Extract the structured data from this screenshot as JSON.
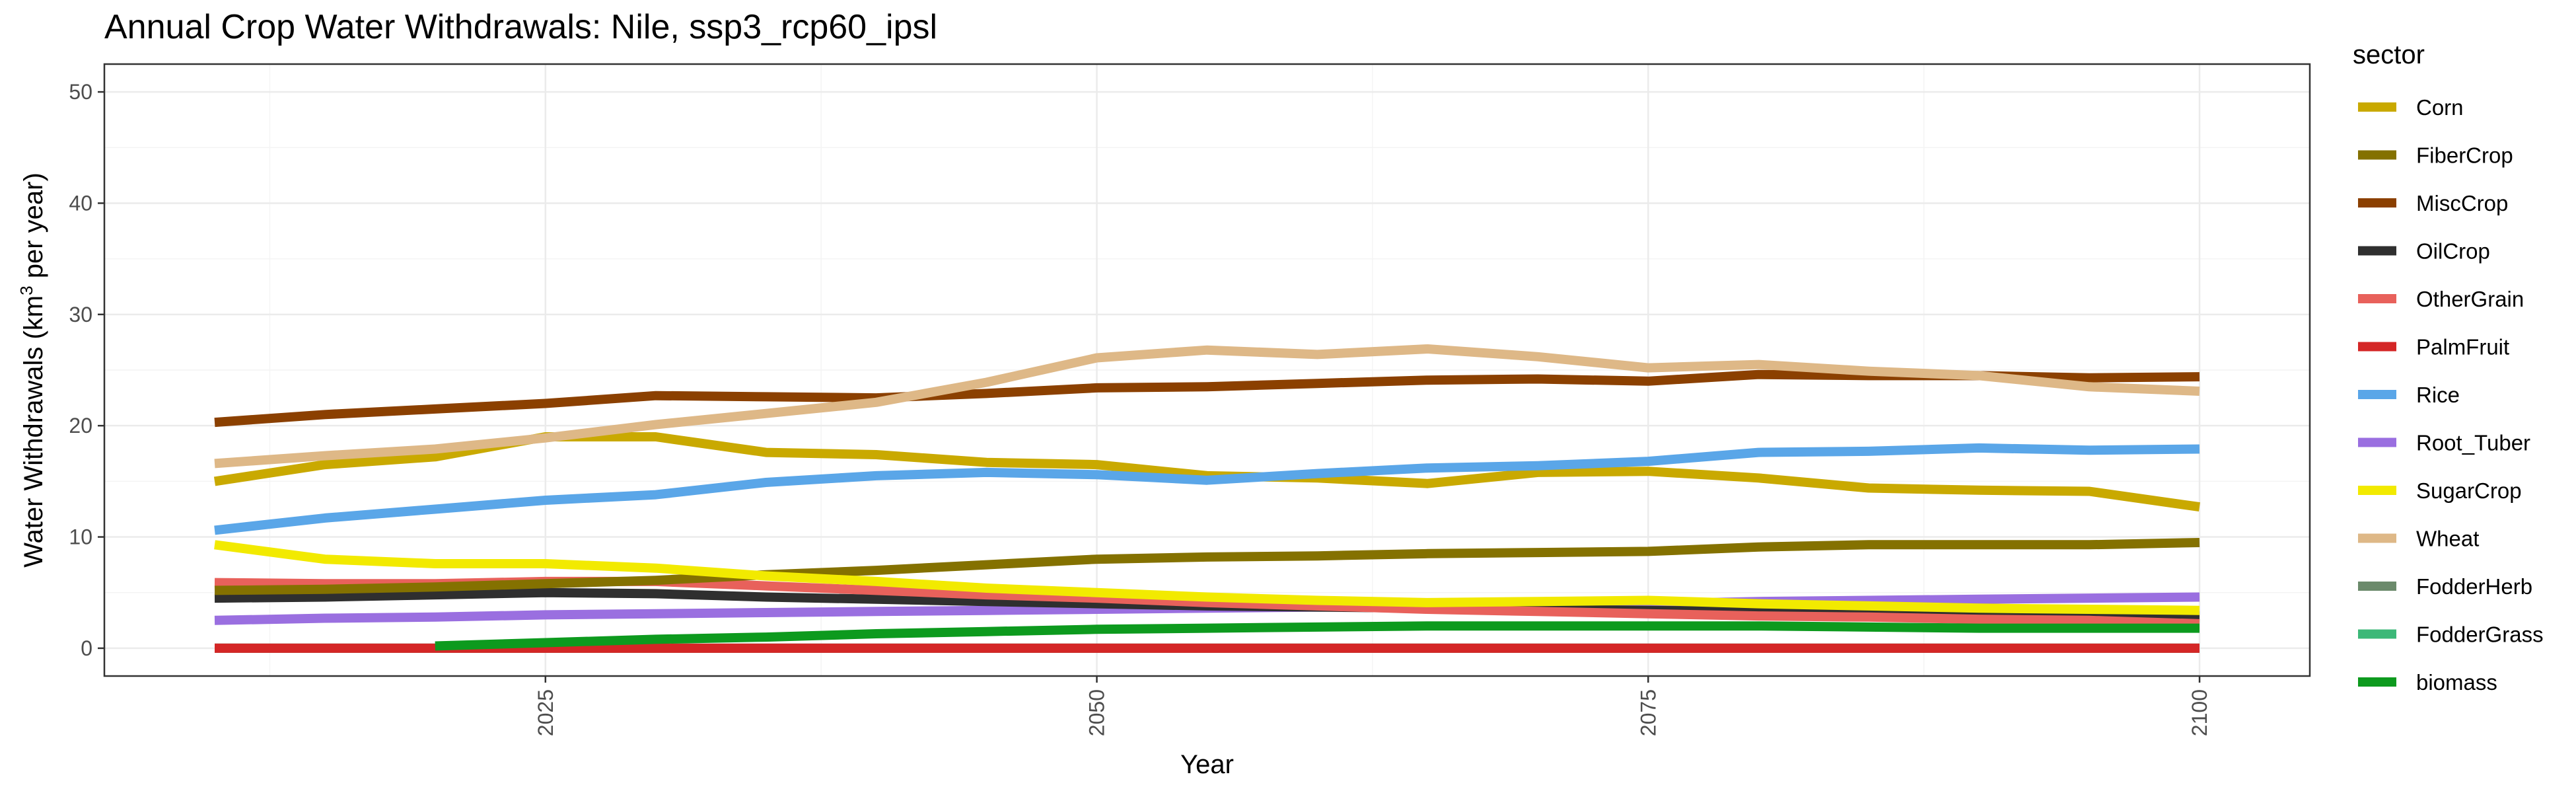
{
  "chart_data": {
    "type": "line",
    "title": "Annual Crop Water Withdrawals: Nile, ssp3_rcp60_ipsl",
    "xlabel": "Year",
    "ylabel_prefix": "Water Withdrawals (km",
    "ylabel_sup": "3",
    "ylabel_suffix": " per year)",
    "xlim": [
      2005,
      2105
    ],
    "ylim": [
      -2.5,
      52.5
    ],
    "x_ticks": [
      2025,
      2050,
      2075,
      2100
    ],
    "y_ticks": [
      0,
      10,
      20,
      30,
      40,
      50
    ],
    "grid": true,
    "legend_position": "right",
    "legend_title": "sector",
    "x": [
      2010,
      2015,
      2020,
      2025,
      2030,
      2035,
      2040,
      2045,
      2050,
      2055,
      2060,
      2065,
      2070,
      2075,
      2080,
      2085,
      2090,
      2095,
      2100
    ],
    "series": [
      {
        "name": "Corn",
        "color": "#c9a900",
        "values": [
          15.0,
          16.5,
          17.2,
          19.0,
          19.0,
          17.6,
          17.4,
          16.7,
          16.5,
          15.5,
          15.3,
          14.8,
          15.8,
          15.9,
          15.3,
          14.4,
          14.2,
          14.1,
          12.7
        ]
      },
      {
        "name": "FiberCrop",
        "color": "#847100",
        "values": [
          5.2,
          5.3,
          5.5,
          5.8,
          6.1,
          6.6,
          7.0,
          7.5,
          8.0,
          8.2,
          8.3,
          8.5,
          8.6,
          8.7,
          9.1,
          9.3,
          9.3,
          9.3,
          9.5
        ]
      },
      {
        "name": "MiscCrop",
        "color": "#8b4000",
        "values": [
          20.3,
          21.0,
          21.5,
          22.0,
          22.7,
          22.6,
          22.5,
          22.9,
          23.4,
          23.5,
          23.8,
          24.1,
          24.2,
          24.0,
          24.6,
          24.5,
          24.5,
          24.3,
          24.4
        ]
      },
      {
        "name": "OilCrop",
        "color": "#2f2f2f",
        "values": [
          4.5,
          4.6,
          4.8,
          5.0,
          4.9,
          4.6,
          4.4,
          4.2,
          4.0,
          3.8,
          3.7,
          3.6,
          3.5,
          3.4,
          3.3,
          3.2,
          3.1,
          3.0,
          2.9
        ]
      },
      {
        "name": "OtherGrain",
        "color": "#e8615b",
        "values": [
          5.9,
          5.8,
          5.8,
          6.0,
          6.0,
          5.6,
          5.2,
          4.8,
          4.5,
          4.1,
          3.8,
          3.5,
          3.3,
          3.1,
          2.9,
          2.8,
          2.6,
          2.5,
          2.2
        ]
      },
      {
        "name": "PalmFruit",
        "color": "#d42626",
        "values": [
          0,
          0,
          0,
          0,
          0,
          0,
          0,
          0,
          0,
          0,
          0,
          0,
          0,
          0,
          0,
          0,
          0,
          0,
          0
        ]
      },
      {
        "name": "Rice",
        "color": "#5aa6e8",
        "values": [
          10.6,
          11.7,
          12.5,
          13.3,
          13.8,
          14.9,
          15.5,
          15.8,
          15.6,
          15.1,
          15.7,
          16.2,
          16.4,
          16.8,
          17.6,
          17.7,
          18.0,
          17.8,
          17.9
        ]
      },
      {
        "name": "Root_Tuber",
        "color": "#9a6fe0",
        "values": [
          2.5,
          2.7,
          2.8,
          3.0,
          3.1,
          3.2,
          3.3,
          3.4,
          3.5,
          3.6,
          3.7,
          3.8,
          3.9,
          4.0,
          4.2,
          4.3,
          4.4,
          4.5,
          4.6
        ]
      },
      {
        "name": "SugarCrop",
        "color": "#f2ea00",
        "values": [
          9.3,
          8.0,
          7.6,
          7.6,
          7.2,
          6.5,
          6.0,
          5.4,
          5.0,
          4.6,
          4.3,
          4.1,
          4.2,
          4.3,
          4.0,
          3.8,
          3.6,
          3.5,
          3.4
        ]
      },
      {
        "name": "Wheat",
        "color": "#deb887",
        "values": [
          16.6,
          17.3,
          17.9,
          18.9,
          20.1,
          21.1,
          22.1,
          23.9,
          26.1,
          26.8,
          26.4,
          26.9,
          26.2,
          25.2,
          25.5,
          24.9,
          24.5,
          23.5,
          23.1
        ]
      },
      {
        "name": "FodderHerb",
        "color": "#6b8a6b",
        "values": [
          0.0,
          0.0,
          0.0,
          0.0,
          0.0,
          0.0,
          0.0,
          0.0,
          0.0,
          0.0,
          0.0,
          0.0,
          0.0,
          0.0,
          0.0,
          0.0,
          0.0,
          0.0,
          0.0
        ]
      },
      {
        "name": "FodderGrass",
        "color": "#3cb878",
        "values": [
          0,
          0,
          0,
          0,
          0,
          0,
          0,
          0,
          0,
          0,
          0,
          0,
          0,
          0,
          0,
          0,
          0,
          0,
          0
        ]
      },
      {
        "name": "biomass",
        "color": "#0d9a1e",
        "values": [
          null,
          null,
          0.2,
          0.5,
          0.8,
          1.0,
          1.3,
          1.5,
          1.7,
          1.8,
          1.9,
          2.0,
          2.0,
          2.0,
          2.0,
          1.9,
          1.8,
          1.8,
          1.8
        ]
      }
    ],
    "draw_order": [
      "FodderGrass",
      "FodderHerb",
      "PalmFruit",
      "Root_Tuber",
      "OilCrop",
      "OtherGrain",
      "biomass",
      "FiberCrop",
      "SugarCrop",
      "Corn",
      "Rice",
      "MiscCrop",
      "Wheat"
    ]
  }
}
